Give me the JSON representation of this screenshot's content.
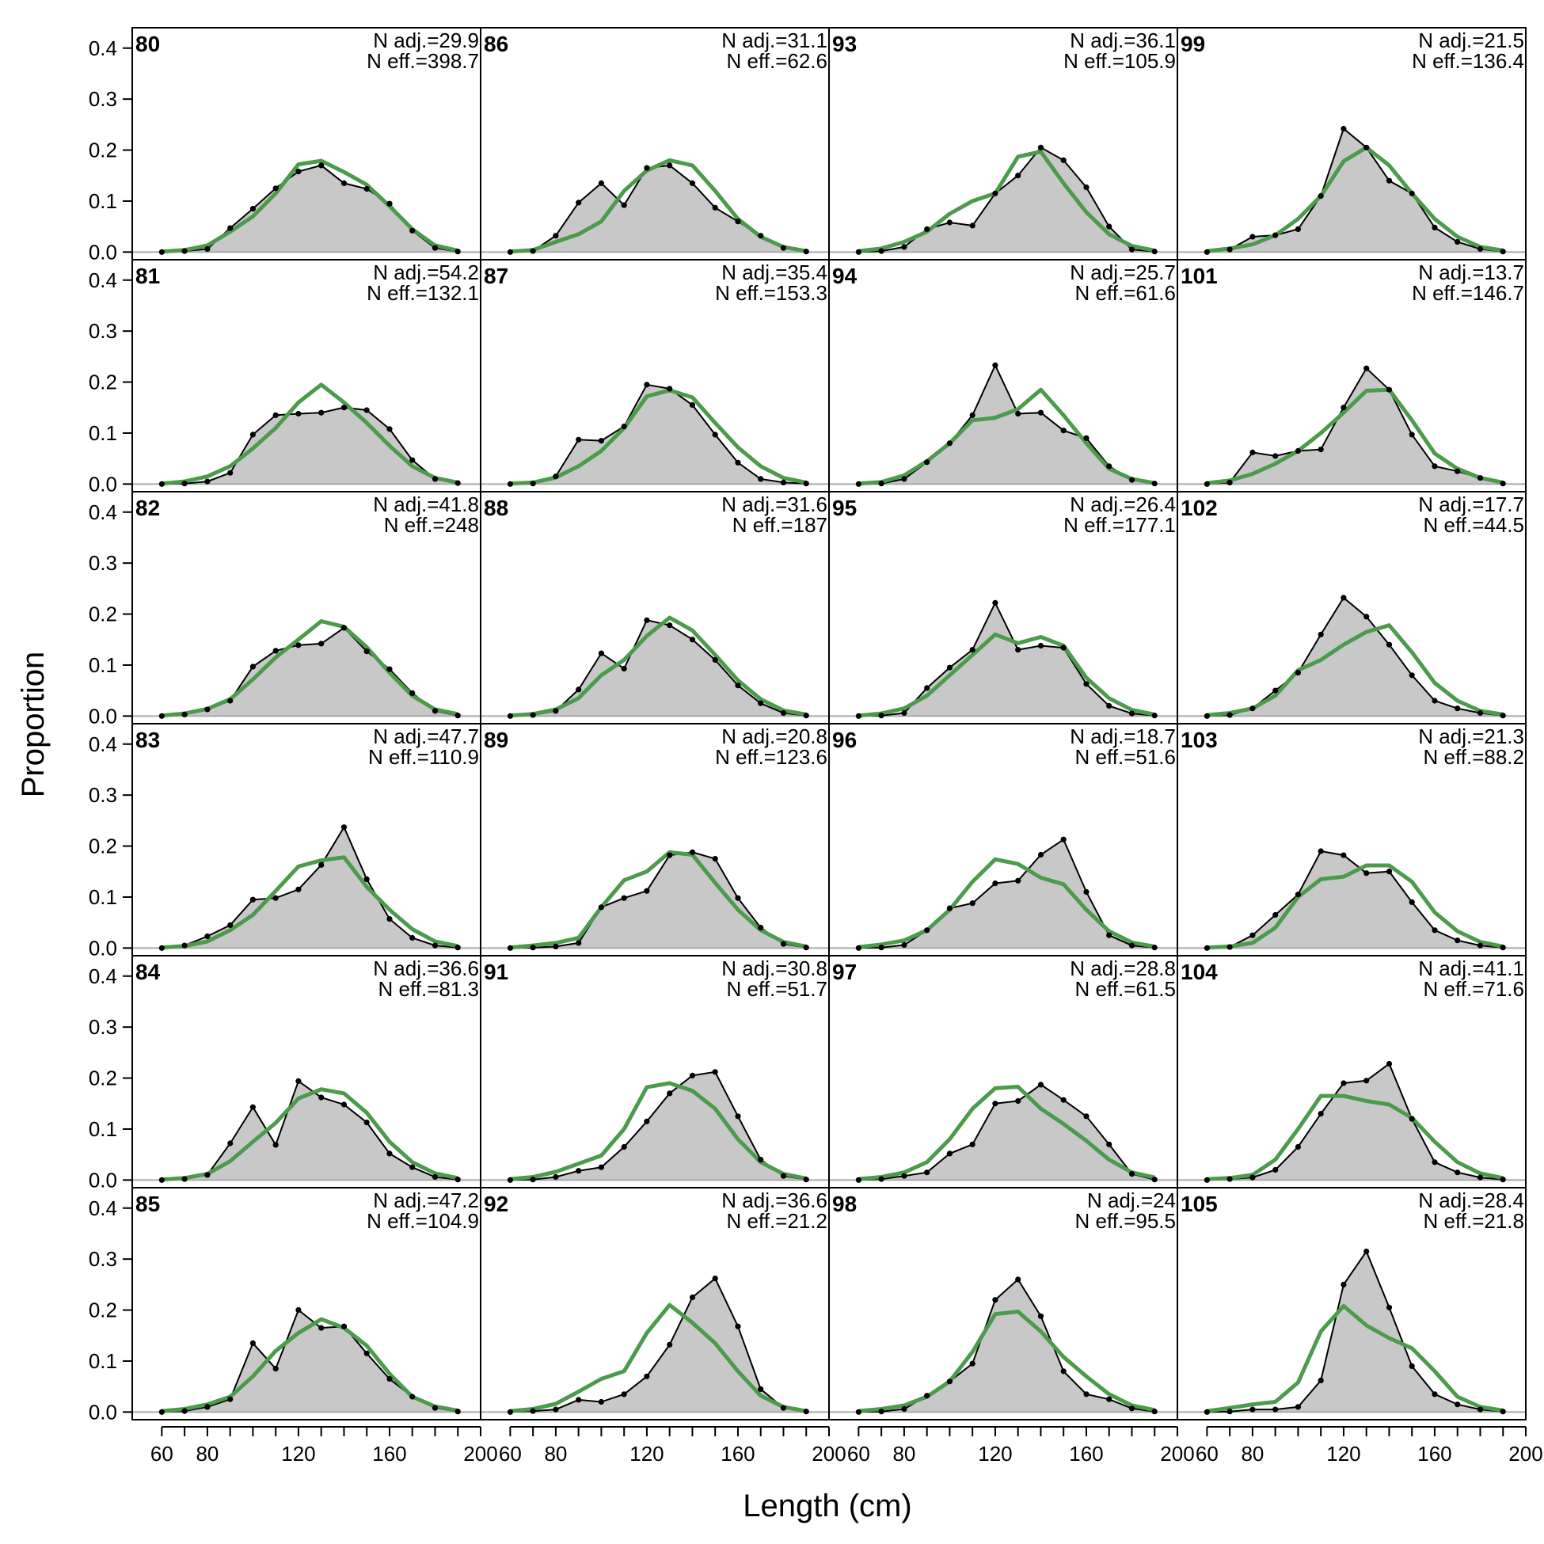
{
  "chart_data": {
    "type": "area",
    "xlabel": "Length (cm)",
    "ylabel": "Proportion",
    "xlim": [
      47,
      200
    ],
    "ylim": [
      -0.015,
      0.44
    ],
    "x_ticks": [
      60,
      80,
      120,
      160,
      200
    ],
    "y_ticks": [
      0.0,
      0.1,
      0.2,
      0.3,
      0.4
    ],
    "y_tick_labels": [
      "0.0",
      "0.1",
      "0.2",
      "0.3",
      "0.4"
    ],
    "grid": false,
    "layout": "6 rows x 4 columns, column-major panel order",
    "colors": {
      "observed_fill": "#c8c8c8",
      "observed_line": "#000000",
      "expected_line": "#4c9b4c",
      "zero_line": "#aaaaaa"
    },
    "x": [
      60,
      70,
      80,
      90,
      100,
      110,
      120,
      130,
      140,
      150,
      160,
      170,
      180,
      190
    ],
    "panels": [
      {
        "label": "80",
        "n_adj": "N adj.=29.9",
        "n_eff": "N eff.=398.7",
        "observed": [
          0.0,
          0.002,
          0.006,
          0.047,
          0.085,
          0.125,
          0.158,
          0.17,
          0.135,
          0.124,
          0.095,
          0.042,
          0.008,
          0.001
        ],
        "expected": [
          0.001,
          0.004,
          0.013,
          0.04,
          0.07,
          0.115,
          0.172,
          0.179,
          0.157,
          0.132,
          0.09,
          0.045,
          0.013,
          0.003
        ]
      },
      {
        "label": "81",
        "n_adj": "N adj.=54.2",
        "n_eff": "N eff.=132.1",
        "observed": [
          0.0,
          0.001,
          0.005,
          0.022,
          0.097,
          0.135,
          0.138,
          0.14,
          0.15,
          0.145,
          0.108,
          0.047,
          0.01,
          0.002
        ],
        "expected": [
          0.001,
          0.005,
          0.015,
          0.035,
          0.07,
          0.11,
          0.16,
          0.195,
          0.16,
          0.12,
          0.075,
          0.035,
          0.012,
          0.003
        ]
      },
      {
        "label": "82",
        "n_adj": "N adj.=41.8",
        "n_eff": "N eff.=248",
        "observed": [
          0.0,
          0.003,
          0.013,
          0.03,
          0.097,
          0.128,
          0.139,
          0.142,
          0.173,
          0.127,
          0.092,
          0.045,
          0.01,
          0.001
        ],
        "expected": [
          0.001,
          0.005,
          0.014,
          0.033,
          0.072,
          0.115,
          0.15,
          0.186,
          0.175,
          0.135,
          0.085,
          0.04,
          0.013,
          0.004
        ]
      },
      {
        "label": "83",
        "n_adj": "N adj.=47.7",
        "n_eff": "N eff.=110.9",
        "observed": [
          0.0,
          0.005,
          0.023,
          0.045,
          0.095,
          0.098,
          0.115,
          0.163,
          0.237,
          0.135,
          0.057,
          0.02,
          0.005,
          0.001
        ],
        "expected": [
          0.001,
          0.004,
          0.013,
          0.035,
          0.065,
          0.112,
          0.16,
          0.172,
          0.178,
          0.12,
          0.075,
          0.037,
          0.013,
          0.004
        ]
      },
      {
        "label": "84",
        "n_adj": "N adj.=36.6",
        "n_eff": "N eff.=81.3",
        "observed": [
          0.0,
          0.002,
          0.01,
          0.072,
          0.143,
          0.069,
          0.194,
          0.162,
          0.148,
          0.113,
          0.052,
          0.025,
          0.006,
          0.001
        ],
        "expected": [
          0.001,
          0.004,
          0.012,
          0.037,
          0.075,
          0.112,
          0.16,
          0.178,
          0.17,
          0.132,
          0.075,
          0.035,
          0.013,
          0.004
        ]
      },
      {
        "label": "85",
        "n_adj": "N adj.=47.2",
        "n_eff": "N eff.=104.9",
        "observed": [
          0.0,
          0.002,
          0.01,
          0.025,
          0.135,
          0.085,
          0.2,
          0.165,
          0.168,
          0.115,
          0.065,
          0.03,
          0.008,
          0.001
        ],
        "expected": [
          0.002,
          0.006,
          0.015,
          0.03,
          0.07,
          0.12,
          0.155,
          0.182,
          0.165,
          0.13,
          0.075,
          0.03,
          0.011,
          0.003
        ]
      },
      {
        "label": "86",
        "n_adj": "N adj.=31.1",
        "n_eff": "N eff.=62.6",
        "observed": [
          0.0,
          0.002,
          0.032,
          0.097,
          0.135,
          0.092,
          0.165,
          0.17,
          0.135,
          0.087,
          0.06,
          0.032,
          0.008,
          0.001
        ],
        "expected": [
          0.001,
          0.004,
          0.02,
          0.035,
          0.06,
          0.12,
          0.16,
          0.18,
          0.17,
          0.12,
          0.065,
          0.03,
          0.01,
          0.002
        ]
      },
      {
        "label": "87",
        "n_adj": "N adj.=35.4",
        "n_eff": "N eff.=153.3",
        "observed": [
          0.0,
          0.001,
          0.015,
          0.087,
          0.085,
          0.113,
          0.195,
          0.187,
          0.155,
          0.097,
          0.042,
          0.01,
          0.003,
          0.001
        ],
        "expected": [
          0.001,
          0.003,
          0.013,
          0.035,
          0.065,
          0.11,
          0.172,
          0.184,
          0.17,
          0.12,
          0.072,
          0.035,
          0.012,
          0.003
        ]
      },
      {
        "label": "88",
        "n_adj": "N adj.=31.6",
        "n_eff": "N eff.=187",
        "observed": [
          0.0,
          0.002,
          0.01,
          0.052,
          0.123,
          0.093,
          0.188,
          0.178,
          0.15,
          0.11,
          0.06,
          0.025,
          0.006,
          0.001
        ],
        "expected": [
          0.001,
          0.004,
          0.013,
          0.035,
          0.08,
          0.11,
          0.157,
          0.193,
          0.168,
          0.12,
          0.07,
          0.033,
          0.011,
          0.003
        ]
      },
      {
        "label": "89",
        "n_adj": "N adj.=20.8",
        "n_eff": "N eff.=123.6",
        "observed": [
          0.0,
          0.001,
          0.003,
          0.01,
          0.08,
          0.098,
          0.112,
          0.182,
          0.188,
          0.175,
          0.098,
          0.04,
          0.008,
          0.001
        ],
        "expected": [
          0.001,
          0.005,
          0.01,
          0.02,
          0.08,
          0.133,
          0.15,
          0.188,
          0.183,
          0.128,
          0.075,
          0.035,
          0.012,
          0.003
        ]
      },
      {
        "label": "91",
        "n_adj": "N adj.=30.8",
        "n_eff": "N eff.=51.7",
        "observed": [
          0.0,
          0.001,
          0.006,
          0.018,
          0.025,
          0.065,
          0.115,
          0.17,
          0.205,
          0.212,
          0.125,
          0.04,
          0.008,
          0.001
        ],
        "expected": [
          0.002,
          0.006,
          0.016,
          0.032,
          0.048,
          0.1,
          0.182,
          0.19,
          0.175,
          0.14,
          0.08,
          0.035,
          0.012,
          0.003
        ]
      },
      {
        "label": "92",
        "n_adj": "N adj.=36.6",
        "n_eff": "N eff.=21.2",
        "observed": [
          0.0,
          0.002,
          0.005,
          0.024,
          0.02,
          0.035,
          0.07,
          0.132,
          0.225,
          0.262,
          0.168,
          0.045,
          0.008,
          0.001
        ],
        "expected": [
          0.002,
          0.006,
          0.016,
          0.04,
          0.065,
          0.08,
          0.155,
          0.21,
          0.175,
          0.135,
          0.08,
          0.032,
          0.01,
          0.002
        ]
      },
      {
        "label": "93",
        "n_adj": "N adj.=36.1",
        "n_eff": "N eff.=105.9",
        "observed": [
          0.0,
          0.002,
          0.01,
          0.045,
          0.058,
          0.052,
          0.115,
          0.15,
          0.205,
          0.18,
          0.127,
          0.05,
          0.005,
          0.001
        ],
        "expected": [
          0.002,
          0.007,
          0.02,
          0.04,
          0.075,
          0.1,
          0.115,
          0.187,
          0.197,
          0.135,
          0.078,
          0.035,
          0.012,
          0.003
        ]
      },
      {
        "label": "94",
        "n_adj": "N adj.=25.7",
        "n_eff": "N eff.=61.6",
        "observed": [
          0.0,
          0.001,
          0.01,
          0.043,
          0.08,
          0.135,
          0.233,
          0.138,
          0.14,
          0.105,
          0.09,
          0.035,
          0.008,
          0.001
        ],
        "expected": [
          0.001,
          0.004,
          0.017,
          0.045,
          0.08,
          0.125,
          0.13,
          0.147,
          0.185,
          0.135,
          0.08,
          0.03,
          0.01,
          0.002
        ]
      },
      {
        "label": "95",
        "n_adj": "N adj.=26.4",
        "n_eff": "N eff.=177.1",
        "observed": [
          0.0,
          0.001,
          0.006,
          0.055,
          0.095,
          0.13,
          0.222,
          0.13,
          0.138,
          0.134,
          0.063,
          0.02,
          0.005,
          0.001
        ],
        "expected": [
          0.001,
          0.005,
          0.015,
          0.04,
          0.08,
          0.12,
          0.16,
          0.143,
          0.155,
          0.138,
          0.075,
          0.035,
          0.012,
          0.003
        ]
      },
      {
        "label": "96",
        "n_adj": "N adj.=18.7",
        "n_eff": "N eff.=51.6",
        "observed": [
          0.0,
          0.001,
          0.006,
          0.035,
          0.078,
          0.088,
          0.127,
          0.132,
          0.183,
          0.213,
          0.11,
          0.025,
          0.005,
          0.001
        ],
        "expected": [
          0.002,
          0.007,
          0.015,
          0.035,
          0.075,
          0.13,
          0.174,
          0.165,
          0.138,
          0.125,
          0.075,
          0.033,
          0.011,
          0.003
        ]
      },
      {
        "label": "97",
        "n_adj": "N adj.=28.8",
        "n_eff": "N eff.=61.5",
        "observed": [
          0.0,
          0.002,
          0.008,
          0.015,
          0.052,
          0.07,
          0.15,
          0.155,
          0.187,
          0.157,
          0.125,
          0.07,
          0.012,
          0.001
        ],
        "expected": [
          0.002,
          0.006,
          0.015,
          0.035,
          0.08,
          0.14,
          0.18,
          0.183,
          0.14,
          0.11,
          0.077,
          0.04,
          0.015,
          0.005
        ]
      },
      {
        "label": "98",
        "n_adj": "N adj.=24",
        "n_eff": "N eff.=95.5",
        "observed": [
          0.0,
          0.001,
          0.006,
          0.032,
          0.06,
          0.095,
          0.22,
          0.26,
          0.188,
          0.08,
          0.035,
          0.025,
          0.007,
          0.001
        ],
        "expected": [
          0.002,
          0.006,
          0.013,
          0.03,
          0.06,
          0.118,
          0.192,
          0.197,
          0.158,
          0.108,
          0.07,
          0.035,
          0.013,
          0.004
        ]
      },
      {
        "label": "99",
        "n_adj": "N adj.=21.5",
        "n_eff": "N eff.=136.4",
        "observed": [
          0.0,
          0.005,
          0.03,
          0.033,
          0.045,
          0.11,
          0.242,
          0.205,
          0.14,
          0.115,
          0.048,
          0.02,
          0.006,
          0.001
        ],
        "expected": [
          0.002,
          0.007,
          0.015,
          0.033,
          0.065,
          0.11,
          0.178,
          0.205,
          0.17,
          0.115,
          0.065,
          0.03,
          0.01,
          0.003
        ]
      },
      {
        "label": "101",
        "n_adj": "N adj.=13.7",
        "n_eff": "N eff.=146.7",
        "observed": [
          0.0,
          0.003,
          0.062,
          0.055,
          0.065,
          0.068,
          0.15,
          0.227,
          0.185,
          0.097,
          0.035,
          0.025,
          0.012,
          0.001
        ],
        "expected": [
          0.002,
          0.007,
          0.02,
          0.04,
          0.065,
          0.1,
          0.14,
          0.183,
          0.185,
          0.125,
          0.06,
          0.03,
          0.012,
          0.003
        ]
      },
      {
        "label": "102",
        "n_adj": "N adj.=17.7",
        "n_eff": "N eff.=44.5",
        "observed": [
          0.0,
          0.002,
          0.015,
          0.05,
          0.085,
          0.16,
          0.232,
          0.195,
          0.14,
          0.08,
          0.03,
          0.015,
          0.006,
          0.001
        ],
        "expected": [
          0.002,
          0.006,
          0.015,
          0.04,
          0.09,
          0.11,
          0.14,
          0.165,
          0.178,
          0.125,
          0.065,
          0.03,
          0.01,
          0.003
        ]
      },
      {
        "label": "103",
        "n_adj": "N adj.=21.3",
        "n_eff": "N eff.=88.2",
        "observed": [
          0.0,
          0.002,
          0.025,
          0.065,
          0.105,
          0.19,
          0.182,
          0.147,
          0.15,
          0.09,
          0.035,
          0.015,
          0.005,
          0.001
        ],
        "expected": [
          0.001,
          0.003,
          0.01,
          0.04,
          0.1,
          0.135,
          0.14,
          0.162,
          0.162,
          0.13,
          0.07,
          0.033,
          0.012,
          0.003
        ]
      },
      {
        "label": "104",
        "n_adj": "N adj.=41.1",
        "n_eff": "N eff.=71.6",
        "observed": [
          0.0,
          0.002,
          0.005,
          0.02,
          0.065,
          0.13,
          0.19,
          0.195,
          0.228,
          0.12,
          0.035,
          0.015,
          0.005,
          0.001
        ],
        "expected": [
          0.002,
          0.004,
          0.01,
          0.04,
          0.1,
          0.165,
          0.165,
          0.155,
          0.148,
          0.122,
          0.075,
          0.035,
          0.013,
          0.004
        ]
      },
      {
        "label": "105",
        "n_adj": "N adj.=28.4",
        "n_eff": "N eff.=21.8",
        "observed": [
          0.0,
          0.001,
          0.005,
          0.005,
          0.01,
          0.062,
          0.25,
          0.315,
          0.205,
          0.09,
          0.035,
          0.015,
          0.005,
          0.001
        ],
        "expected": [
          0.002,
          0.008,
          0.015,
          0.02,
          0.058,
          0.158,
          0.208,
          0.17,
          0.145,
          0.125,
          0.08,
          0.03,
          0.01,
          0.003
        ]
      }
    ]
  }
}
